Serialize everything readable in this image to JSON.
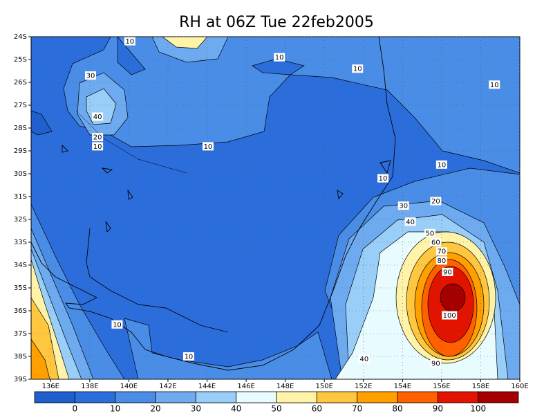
{
  "title": "RH at 06Z Tue 22feb2005",
  "map": {
    "xlim": [
      135,
      160
    ],
    "ylim": [
      -39,
      -24
    ],
    "grid": true,
    "xticks": [
      {
        "value": 136,
        "label": "136E"
      },
      {
        "value": 138,
        "label": "138E"
      },
      {
        "value": 140,
        "label": "140E"
      },
      {
        "value": 142,
        "label": "142E"
      },
      {
        "value": 144,
        "label": "144E"
      },
      {
        "value": 146,
        "label": "146E"
      },
      {
        "value": 148,
        "label": "148E"
      },
      {
        "value": 150,
        "label": "150E"
      },
      {
        "value": 152,
        "label": "152E"
      },
      {
        "value": 154,
        "label": "154E"
      },
      {
        "value": 156,
        "label": "156E"
      },
      {
        "value": 158,
        "label": "158E"
      },
      {
        "value": 160,
        "label": "160E"
      }
    ],
    "yticks": [
      {
        "value": -24,
        "label": "24S"
      },
      {
        "value": -25,
        "label": "25S"
      },
      {
        "value": -26,
        "label": "26S"
      },
      {
        "value": -27,
        "label": "27S"
      },
      {
        "value": -28,
        "label": "28S"
      },
      {
        "value": -29,
        "label": "29S"
      },
      {
        "value": -30,
        "label": "30S"
      },
      {
        "value": -31,
        "label": "31S"
      },
      {
        "value": -32,
        "label": "32S"
      },
      {
        "value": -33,
        "label": "33S"
      },
      {
        "value": -34,
        "label": "34S"
      },
      {
        "value": -35,
        "label": "35S"
      },
      {
        "value": -36,
        "label": "36S"
      },
      {
        "value": -37,
        "label": "37S"
      },
      {
        "value": -38,
        "label": "38S"
      },
      {
        "value": -39,
        "label": "39S"
      }
    ],
    "contour_labels": [
      {
        "value": 10,
        "lon": 140.05,
        "lat": -24.2
      },
      {
        "value": 10,
        "lon": 147.7,
        "lat": -24.9
      },
      {
        "value": 10,
        "lon": 151.7,
        "lat": -25.4
      },
      {
        "value": 10,
        "lon": 158.7,
        "lat": -26.1
      },
      {
        "value": 30,
        "lon": 138.04,
        "lat": -25.7
      },
      {
        "value": 40,
        "lon": 138.4,
        "lat": -27.5
      },
      {
        "value": 20,
        "lon": 138.4,
        "lat": -28.4
      },
      {
        "value": 10,
        "lon": 138.4,
        "lat": -28.8
      },
      {
        "value": 10,
        "lon": 144.05,
        "lat": -28.8
      },
      {
        "value": 10,
        "lon": 156.0,
        "lat": -29.6
      },
      {
        "value": 10,
        "lon": 153.0,
        "lat": -30.2
      },
      {
        "value": 20,
        "lon": 155.7,
        "lat": -31.2
      },
      {
        "value": 30,
        "lon": 154.05,
        "lat": -31.4
      },
      {
        "value": 40,
        "lon": 154.4,
        "lat": -32.1
      },
      {
        "value": 50,
        "lon": 155.4,
        "lat": -32.6
      },
      {
        "value": 60,
        "lon": 155.7,
        "lat": -33.0
      },
      {
        "value": 70,
        "lon": 156.0,
        "lat": -33.4
      },
      {
        "value": 80,
        "lon": 156.0,
        "lat": -33.8
      },
      {
        "value": 90,
        "lon": 156.3,
        "lat": -34.3
      },
      {
        "value": 100,
        "lon": 156.4,
        "lat": -36.2
      },
      {
        "value": 10,
        "lon": 139.4,
        "lat": -36.6
      },
      {
        "value": 10,
        "lon": 143.06,
        "lat": -38.0
      },
      {
        "value": 40,
        "lon": 152.04,
        "lat": -38.1
      },
      {
        "value": 90,
        "lon": 155.7,
        "lat": -38.3
      }
    ]
  },
  "colorbar": {
    "levels": [
      0,
      10,
      20,
      30,
      40,
      50,
      60,
      70,
      80,
      90,
      100
    ],
    "colors": [
      "#1f5fce",
      "#2c6ddc",
      "#4a8de6",
      "#6eaaf0",
      "#98cef8",
      "#e8fbfe",
      "#fff3a8",
      "#ffc640",
      "#ffa000",
      "#ff6000",
      "#e21400",
      "#a50000"
    ]
  }
}
